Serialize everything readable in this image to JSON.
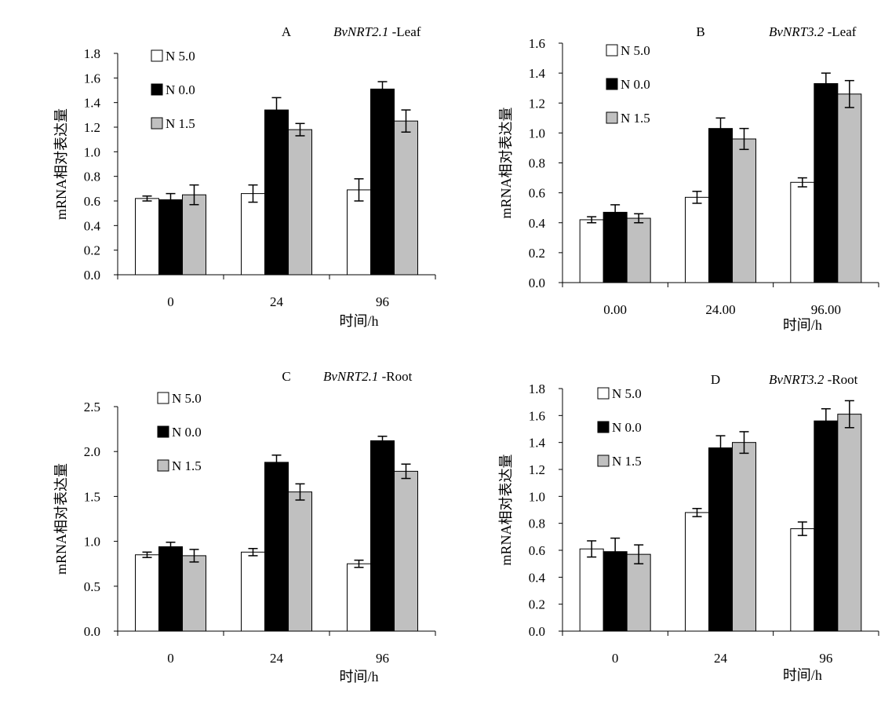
{
  "colors": {
    "N 5.0": "#ffffff",
    "N 0.0": "#000000",
    "N 1.5": "#c0c0c0"
  },
  "chart_data": [
    {
      "type": "bar",
      "letter": "A",
      "gene": "BvNRT2.1",
      "tissue": " -Leaf",
      "ylabel": "mRNA相对表达量",
      "xlabel": "时间/h",
      "categories": [
        "0",
        "24",
        "96"
      ],
      "ylim": [
        0,
        1.8
      ],
      "yticks": [
        "0.0",
        "0.2",
        "0.4",
        "0.6",
        "0.8",
        "1.0",
        "1.2",
        "1.4",
        "1.6",
        "1.8"
      ],
      "legend_position": "top-left",
      "grid": false,
      "series": [
        {
          "name": "N 5.0",
          "values": [
            0.62,
            0.66,
            0.69
          ],
          "errors": [
            0.02,
            0.07,
            0.09
          ]
        },
        {
          "name": "N 0.0",
          "values": [
            0.61,
            1.34,
            1.51
          ],
          "errors": [
            0.05,
            0.1,
            0.06
          ]
        },
        {
          "name": "N 1.5",
          "values": [
            0.65,
            1.18,
            1.25
          ],
          "errors": [
            0.08,
            0.05,
            0.09
          ]
        }
      ]
    },
    {
      "type": "bar",
      "letter": "B",
      "gene": "BvNRT3.2",
      "tissue": " -Leaf",
      "ylabel": "mRNA相对表达量",
      "xlabel": "时间/h",
      "categories": [
        "0.00",
        "24.00",
        "96.00"
      ],
      "ylim": [
        0,
        1.6
      ],
      "yticks": [
        "0.0",
        "0.2",
        "0.4",
        "0.6",
        "0.8",
        "1.0",
        "1.2",
        "1.4",
        "1.6"
      ],
      "legend_position": "top-left",
      "grid": false,
      "series": [
        {
          "name": "N 5.0",
          "values": [
            0.42,
            0.57,
            0.67
          ],
          "errors": [
            0.02,
            0.04,
            0.03
          ]
        },
        {
          "name": "N 0.0",
          "values": [
            0.47,
            1.03,
            1.33
          ],
          "errors": [
            0.05,
            0.07,
            0.07
          ]
        },
        {
          "name": "N 1.5",
          "values": [
            0.43,
            0.96,
            1.26
          ],
          "errors": [
            0.03,
            0.07,
            0.09
          ]
        }
      ]
    },
    {
      "type": "bar",
      "letter": "C",
      "gene": "BvNRT2.1",
      "tissue": " -Root",
      "ylabel": "mRNA相对表达量",
      "xlabel": "时间/h",
      "categories": [
        "0",
        "24",
        "96"
      ],
      "ylim": [
        0,
        2.5
      ],
      "yticks": [
        "0.0",
        "0.5",
        "1.0",
        "1.5",
        "2.0",
        "2.5"
      ],
      "legend_position": "top-left",
      "grid": false,
      "series": [
        {
          "name": "N 5.0",
          "values": [
            0.85,
            0.88,
            0.75
          ],
          "errors": [
            0.03,
            0.04,
            0.04
          ]
        },
        {
          "name": "N 0.0",
          "values": [
            0.94,
            1.88,
            2.12
          ],
          "errors": [
            0.05,
            0.08,
            0.05
          ]
        },
        {
          "name": "N 1.5",
          "values": [
            0.84,
            1.55,
            1.78
          ],
          "errors": [
            0.07,
            0.09,
            0.08
          ]
        }
      ]
    },
    {
      "type": "bar",
      "letter": "D",
      "gene": "BvNRT3.2",
      "tissue": " -Root",
      "ylabel": "mRNA相对表达量",
      "xlabel": "时间/h",
      "categories": [
        "0",
        "24",
        "96"
      ],
      "ylim": [
        0,
        1.8
      ],
      "yticks": [
        "0.0",
        "0.2",
        "0.4",
        "0.6",
        "0.8",
        "1.0",
        "1.2",
        "1.4",
        "1.6",
        "1.8"
      ],
      "legend_position": "top-left",
      "grid": false,
      "series": [
        {
          "name": "N 5.0",
          "values": [
            0.61,
            0.88,
            0.76
          ],
          "errors": [
            0.06,
            0.03,
            0.05
          ]
        },
        {
          "name": "N 0.0",
          "values": [
            0.59,
            1.36,
            1.56
          ],
          "errors": [
            0.1,
            0.09,
            0.09
          ]
        },
        {
          "name": "N 1.5",
          "values": [
            0.57,
            1.4,
            1.61
          ],
          "errors": [
            0.07,
            0.08,
            0.1
          ]
        }
      ]
    }
  ]
}
